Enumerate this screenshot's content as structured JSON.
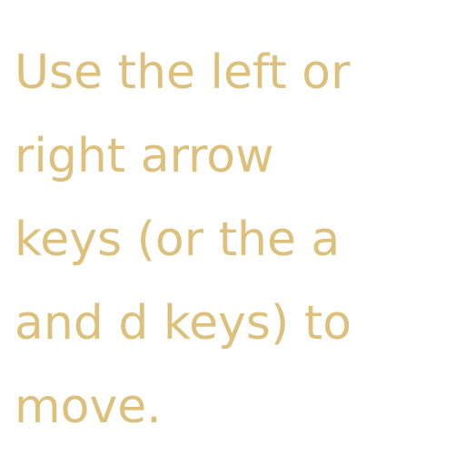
{
  "instructions": {
    "lines": [
      "Use the left or",
      "right arrow",
      "keys (or the a",
      "and d keys) to",
      "move."
    ],
    "text_color": "#dcc07b"
  }
}
